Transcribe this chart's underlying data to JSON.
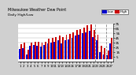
{
  "title1": "Milwaukee Weather Dew Point",
  "title2": "Daily High/Low",
  "background_color": "#d0d0d0",
  "plot_bg": "#ffffff",
  "high_color": "#cc0000",
  "low_color": "#0000cc",
  "days": [
    1,
    2,
    3,
    4,
    5,
    6,
    7,
    8,
    9,
    10,
    11,
    12,
    13,
    14,
    15,
    16,
    17,
    18,
    19,
    20,
    21,
    22,
    23,
    24,
    25,
    26,
    27
  ],
  "high": [
    32,
    36,
    20,
    36,
    38,
    37,
    36,
    38,
    44,
    46,
    48,
    50,
    47,
    52,
    54,
    58,
    62,
    64,
    68,
    73,
    74,
    62,
    52,
    28,
    24,
    18,
    46
  ],
  "low": [
    22,
    24,
    10,
    28,
    30,
    28,
    27,
    30,
    34,
    36,
    38,
    40,
    34,
    40,
    42,
    46,
    50,
    52,
    55,
    58,
    60,
    48,
    40,
    16,
    10,
    8,
    33
  ],
  "ylim": [
    -5,
    75
  ],
  "yticks": [
    5,
    15,
    25,
    35,
    45,
    55,
    65,
    75
  ],
  "ytick_labels": [
    "5",
    "15",
    "25",
    "35",
    "45",
    "55",
    "65",
    "75"
  ],
  "dashed_lines": [
    21.5,
    24.5
  ],
  "legend_labels": [
    "Low",
    "High"
  ],
  "legend_colors": [
    "#0000cc",
    "#cc0000"
  ]
}
